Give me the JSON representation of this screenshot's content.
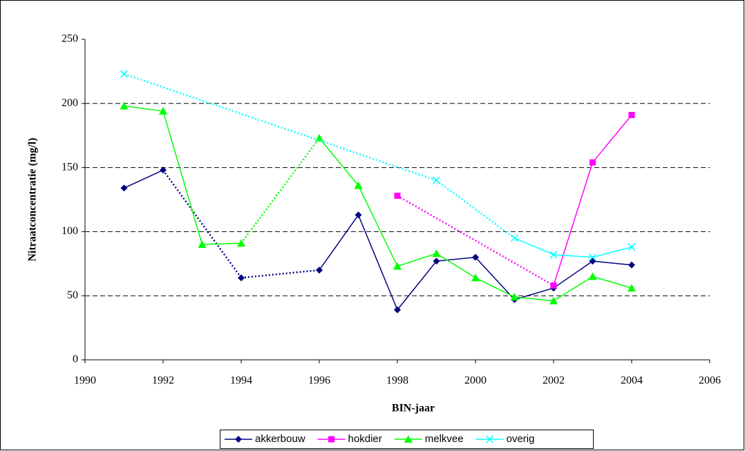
{
  "chart_data": {
    "type": "line",
    "x_label": "BIN-jaar",
    "y_label": "Nitraatconcentratie (mg/l)",
    "xlim": [
      1990,
      2006
    ],
    "xticks": [
      1990,
      1992,
      1994,
      1996,
      1998,
      2000,
      2002,
      2004,
      2006
    ],
    "ylim": [
      0,
      250
    ],
    "yticks": [
      0,
      50,
      100,
      150,
      200,
      250
    ],
    "grid": true,
    "legend": "bottom",
    "series": [
      {
        "name": "akkerbouw",
        "color": "#000080",
        "marker": "diamond",
        "x": [
          1991,
          1992,
          1994,
          1996,
          1997,
          1998,
          1999,
          2000,
          2001,
          2002,
          2003,
          2004
        ],
        "values": [
          134,
          148,
          64,
          70,
          113,
          39,
          77,
          80,
          47,
          56,
          77,
          74
        ]
      },
      {
        "name": "hokdier",
        "color": "#ff00ff",
        "marker": "square",
        "x": [
          1998,
          2002,
          2003,
          2004
        ],
        "values": [
          128,
          58,
          154,
          191
        ]
      },
      {
        "name": "melkvee",
        "color": "#00ff00",
        "marker": "triangle",
        "x": [
          1991,
          1992,
          1993,
          1994,
          1996,
          1997,
          1998,
          1999,
          2000,
          2001,
          2002,
          2003,
          2004
        ],
        "values": [
          198,
          194,
          90,
          91,
          173,
          136,
          73,
          83,
          64,
          49,
          46,
          65,
          56
        ]
      },
      {
        "name": "overig",
        "color": "#00ffff",
        "marker": "x",
        "x": [
          1991,
          1999,
          2001,
          2002,
          2003,
          2004
        ],
        "values": [
          223,
          140,
          95,
          82,
          80,
          88
        ]
      }
    ]
  }
}
